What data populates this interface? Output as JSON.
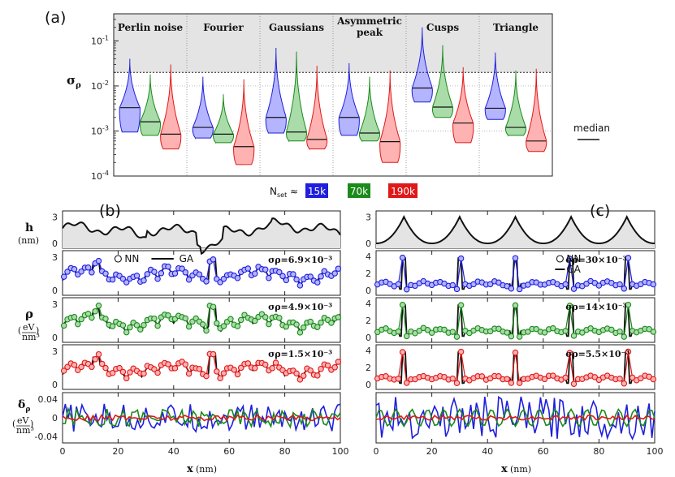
{
  "chart_data": [
    {
      "type": "violin",
      "panel_label": "(a)",
      "ylabel": "σ_ρ",
      "yscale": "log",
      "ylim": [
        0.0001,
        0.4
      ],
      "y_ticks": [
        "10^-4",
        "10^-3",
        "10^-2",
        "10^-1"
      ],
      "threshold": 0.02,
      "categories": [
        "Perlin noise",
        "Fourier",
        "Gaussians",
        "Asymmetric peak",
        "Cusps",
        "Triangle"
      ],
      "series": [
        {
          "name": "15k",
          "color": "#1f1fdd",
          "min": [
            0.00095,
            0.0007,
            0.0009,
            0.0008,
            0.0044,
            0.0018
          ],
          "median": [
            0.0033,
            0.0012,
            0.002,
            0.002,
            0.009,
            0.0032
          ],
          "max": [
            0.04,
            0.016,
            0.07,
            0.032,
            0.2,
            0.055
          ]
        },
        {
          "name": "70k",
          "color": "#1a8a1a",
          "min": [
            0.0008,
            0.00055,
            0.0006,
            0.0006,
            0.002,
            0.0008
          ],
          "median": [
            0.0016,
            0.00085,
            0.00095,
            0.0009,
            0.0034,
            0.0012
          ],
          "max": [
            0.018,
            0.0065,
            0.058,
            0.016,
            0.08,
            0.022
          ]
        },
        {
          "name": "190k",
          "color": "#e01818",
          "min": [
            0.0004,
            0.00018,
            0.0004,
            0.0002,
            0.00055,
            0.00035
          ],
          "median": [
            0.00085,
            0.00045,
            0.00065,
            0.00058,
            0.0015,
            0.0006
          ],
          "max": [
            0.03,
            0.014,
            0.028,
            0.022,
            0.026,
            0.024
          ]
        }
      ],
      "legend_label": "N_set ≈",
      "median_label": "median"
    },
    {
      "type": "line",
      "panel_label": "(b)",
      "xlabel": "x",
      "xunit": "(nm)",
      "xlim": [
        0,
        100
      ],
      "x_ticks": [
        0,
        20,
        40,
        60,
        80,
        100
      ],
      "h_label": "h",
      "h_unit": "(nm)",
      "h_ticks": [
        0,
        3
      ],
      "rho_label": "ρ",
      "rho_unit_num": "eV",
      "rho_unit_den": "nm³",
      "rho_ticks": [
        0,
        3
      ],
      "legend_nn": "NN",
      "legend_ga": "GA",
      "sigma_labels": [
        "σρ=6.9×10⁻³",
        "σρ=4.9×10⁻³",
        "σρ=1.5×10⁻³"
      ],
      "delta_label": "δρ",
      "delta_ticks": [
        "-0.04",
        "0",
        "0.04"
      ]
    },
    {
      "type": "line",
      "panel_label": "(c)",
      "xlabel": "x",
      "xunit": "(nm)",
      "xlim": [
        0,
        100
      ],
      "x_ticks": [
        0,
        20,
        40,
        60,
        80,
        100
      ],
      "h_ticks": [
        0,
        3
      ],
      "rho_ticks": [
        0,
        2,
        4
      ],
      "peaks_x": [
        10,
        30,
        50,
        70,
        90
      ],
      "legend_nn": "NN",
      "legend_ga": "GA",
      "sigma_labels": [
        "σρ=30×10⁻³",
        "σρ=14×10⁻³",
        "σρ=5.5×10⁻³"
      ]
    }
  ],
  "colors": {
    "s15k": "#1f1fdd",
    "s70k": "#1a8a1a",
    "s190k": "#e01818",
    "shade": "#e4e4e4"
  }
}
